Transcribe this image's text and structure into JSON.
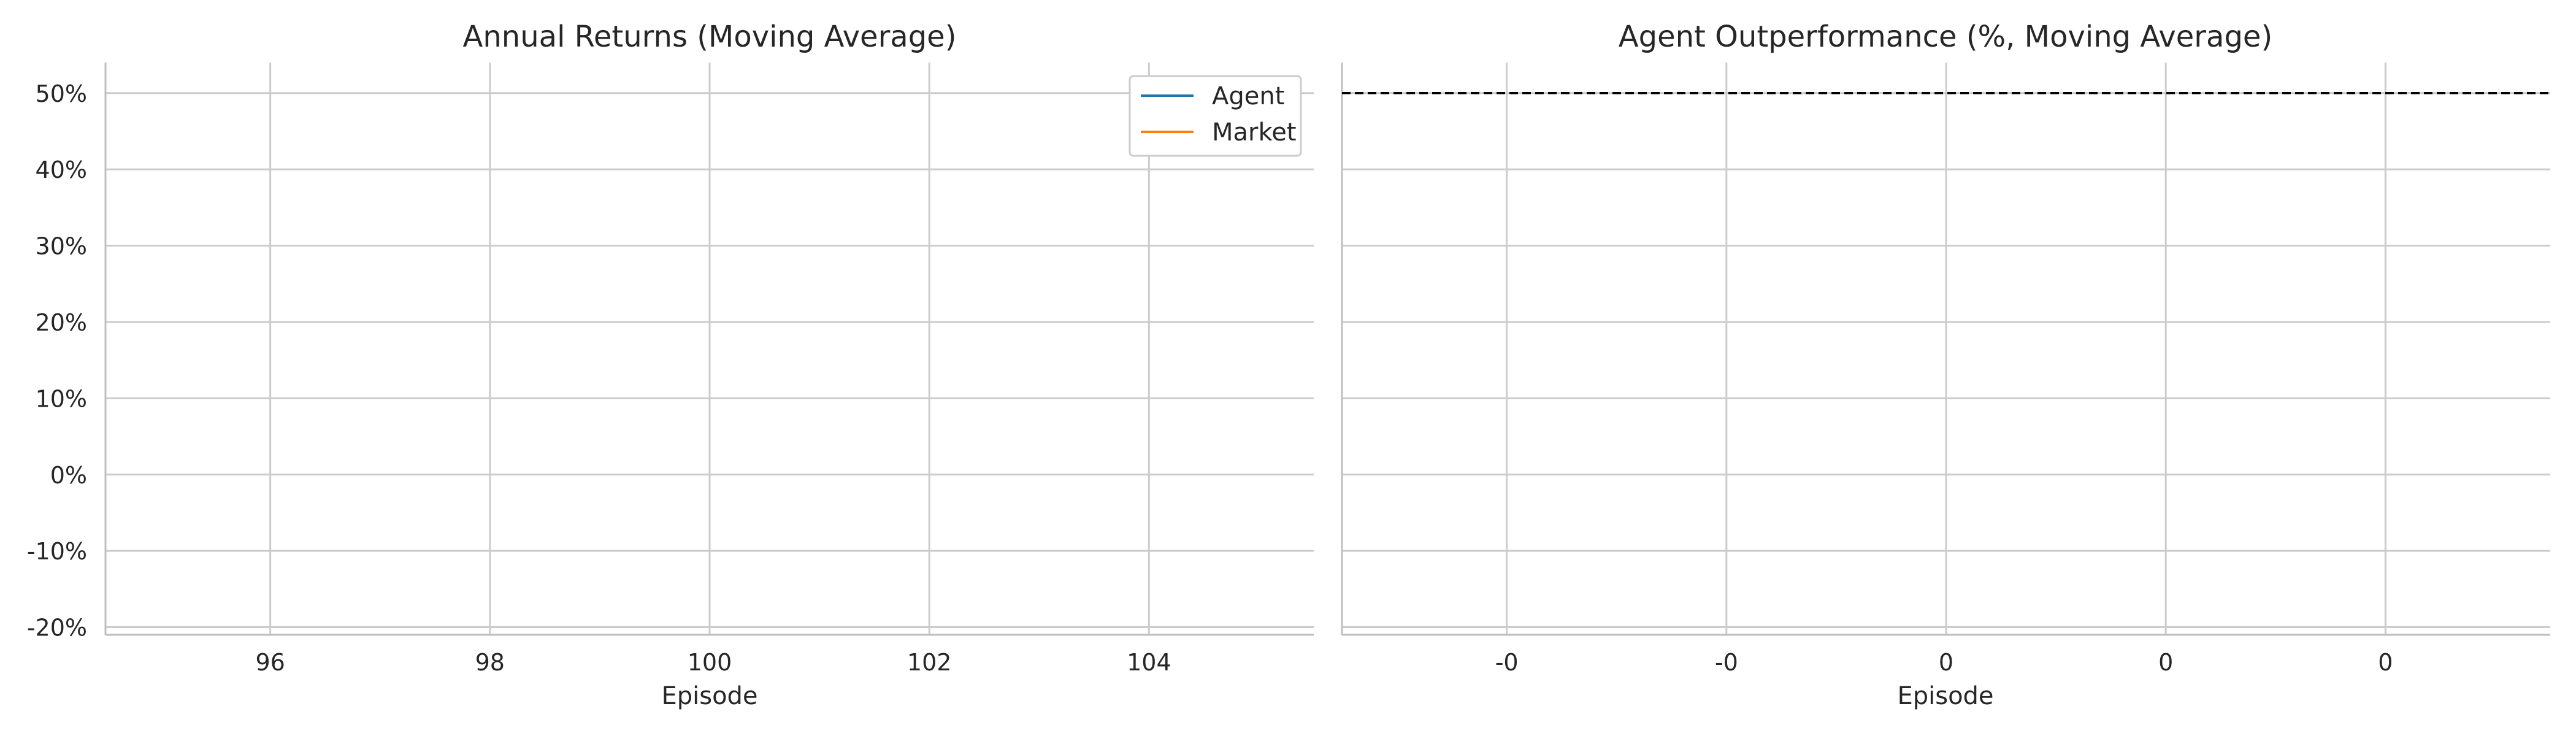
{
  "chart_data": [
    {
      "type": "line",
      "title": "Annual Returns (Moving Average)",
      "xlabel": "Episode",
      "ylabel": "",
      "xlim": [
        94.5,
        105.5
      ],
      "ylim": [
        -21,
        54
      ],
      "x_ticks": [
        96,
        98,
        100,
        102,
        104
      ],
      "x_tick_labels": [
        "96",
        "98",
        "100",
        "102",
        "104"
      ],
      "y_ticks": [
        -20,
        -10,
        0,
        10,
        20,
        30,
        40,
        50
      ],
      "y_tick_labels": [
        "-20%",
        "-10%",
        "0%",
        "10%",
        "20%",
        "30%",
        "40%",
        "50%"
      ],
      "grid": true,
      "legend_position": "top-right",
      "series": [
        {
          "name": "Agent",
          "color": "#1f77b4",
          "x": [],
          "values": []
        },
        {
          "name": "Market",
          "color": "#ff7f0e",
          "x": [],
          "values": []
        }
      ]
    },
    {
      "type": "line",
      "title": "Agent Outperformance (%, Moving Average)",
      "xlabel": "Episode",
      "ylabel": "",
      "xlim": [
        -0.055,
        0.055
      ],
      "ylim": [
        -21,
        54
      ],
      "x_ticks": [
        -0.04,
        -0.02,
        0,
        0.02,
        0.04
      ],
      "x_tick_labels": [
        "-0",
        "-0",
        "0",
        "0",
        "0"
      ],
      "y_ticks": [
        -20,
        -10,
        0,
        10,
        20,
        30,
        40,
        50
      ],
      "grid": true,
      "reference_line": {
        "y": 50,
        "style": "dashed",
        "color": "#000000"
      },
      "series": []
    }
  ]
}
